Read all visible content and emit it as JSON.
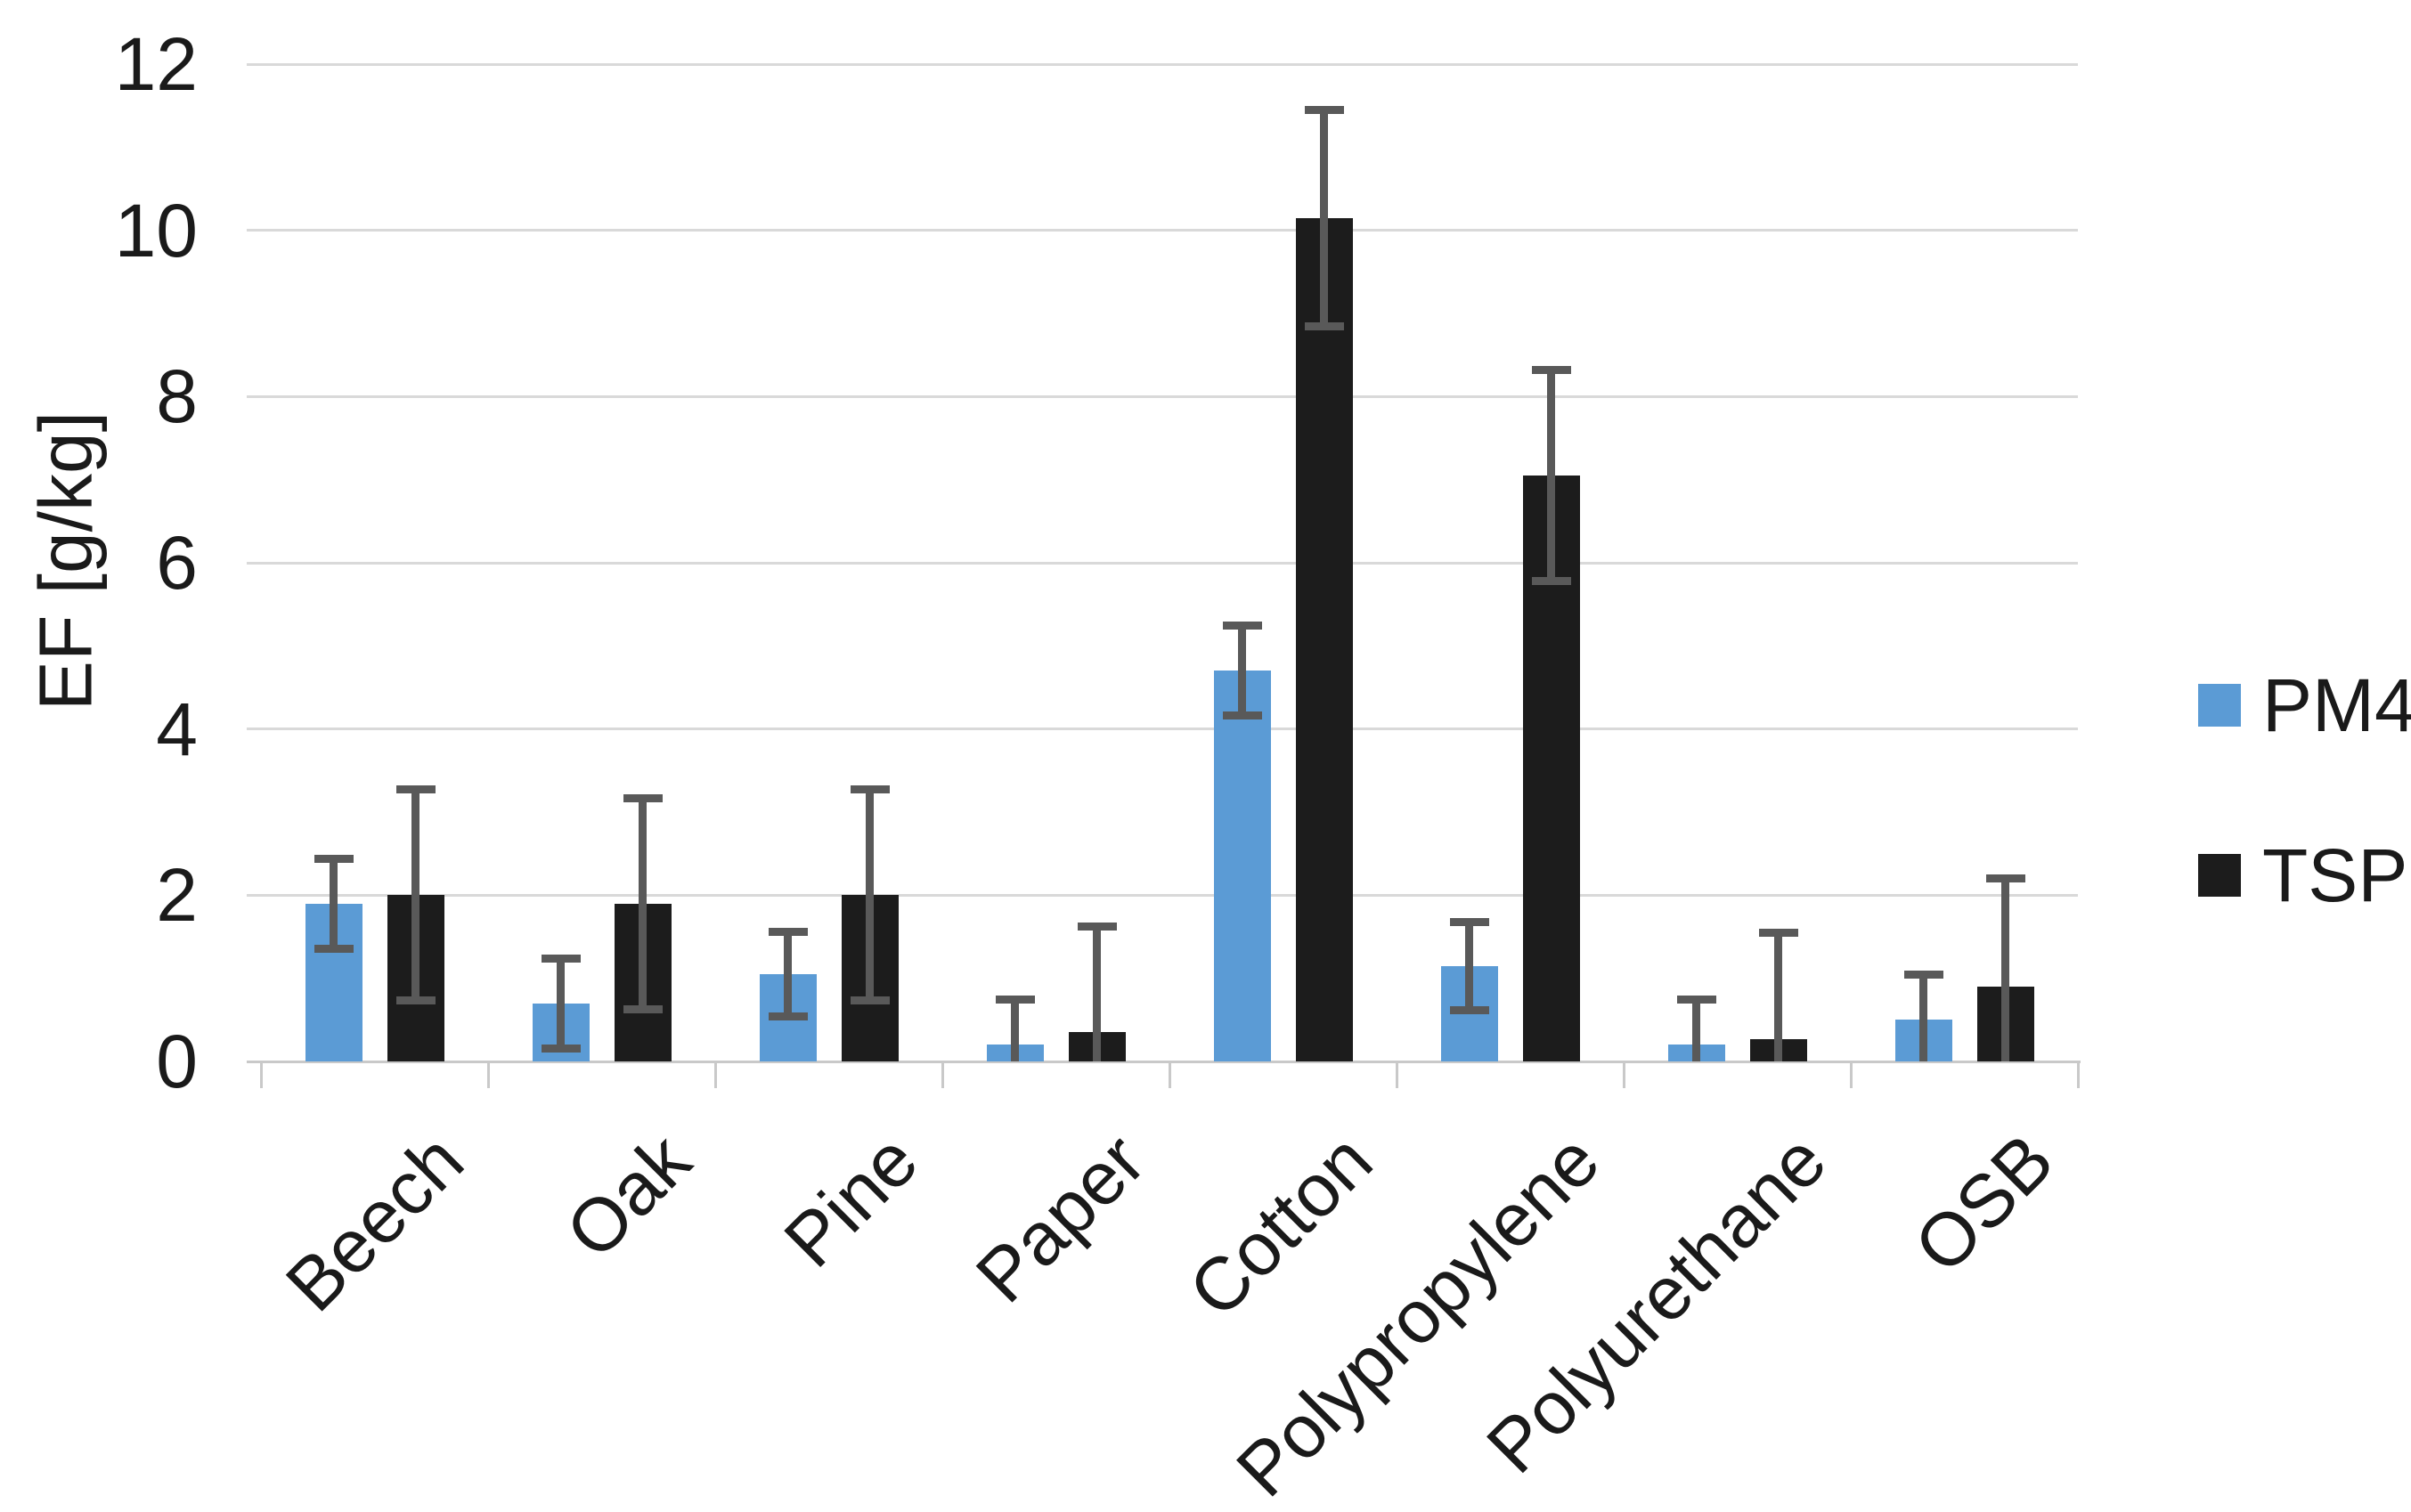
{
  "chart_data": {
    "type": "bar",
    "title": "",
    "xlabel": "",
    "ylabel": "EF [g/kg]",
    "ylim": [
      0,
      12
    ],
    "ytick_interval": 2,
    "yticks": [
      0,
      2,
      4,
      6,
      8,
      10,
      12
    ],
    "grid": "horizontal",
    "legend_position": "right-middle",
    "categories": [
      "Beech",
      "Oak",
      "Pine",
      "Paper",
      "Cotton",
      "Polypropylene",
      "Polyurethane",
      "OSB"
    ],
    "series": [
      {
        "name": "PM4",
        "color": "#5B9BD5",
        "values": [
          1.9,
          0.7,
          1.05,
          0.2,
          4.7,
          1.15,
          0.2,
          0.5
        ],
        "errors": [
          0.54,
          0.54,
          0.51,
          0.55,
          0.54,
          0.53,
          0.54,
          0.55
        ]
      },
      {
        "name": "TSP",
        "color": "#1C1C1C",
        "values": [
          2.0,
          1.9,
          2.0,
          0.35,
          10.15,
          7.05,
          0.27,
          0.9
        ],
        "errors": [
          1.27,
          1.27,
          1.27,
          1.27,
          1.3,
          1.27,
          1.28,
          1.3
        ]
      }
    ],
    "error_bar_color": "#595959"
  },
  "legend": {
    "items": [
      {
        "label": "PM4",
        "color": "#5B9BD5"
      },
      {
        "label": "TSP",
        "color": "#1C1C1C"
      }
    ]
  },
  "colors": {
    "gridline": "#D9D9D9",
    "axis": "#C9C9C9",
    "text": "#1A1A1A",
    "background": "#FFFFFF"
  }
}
